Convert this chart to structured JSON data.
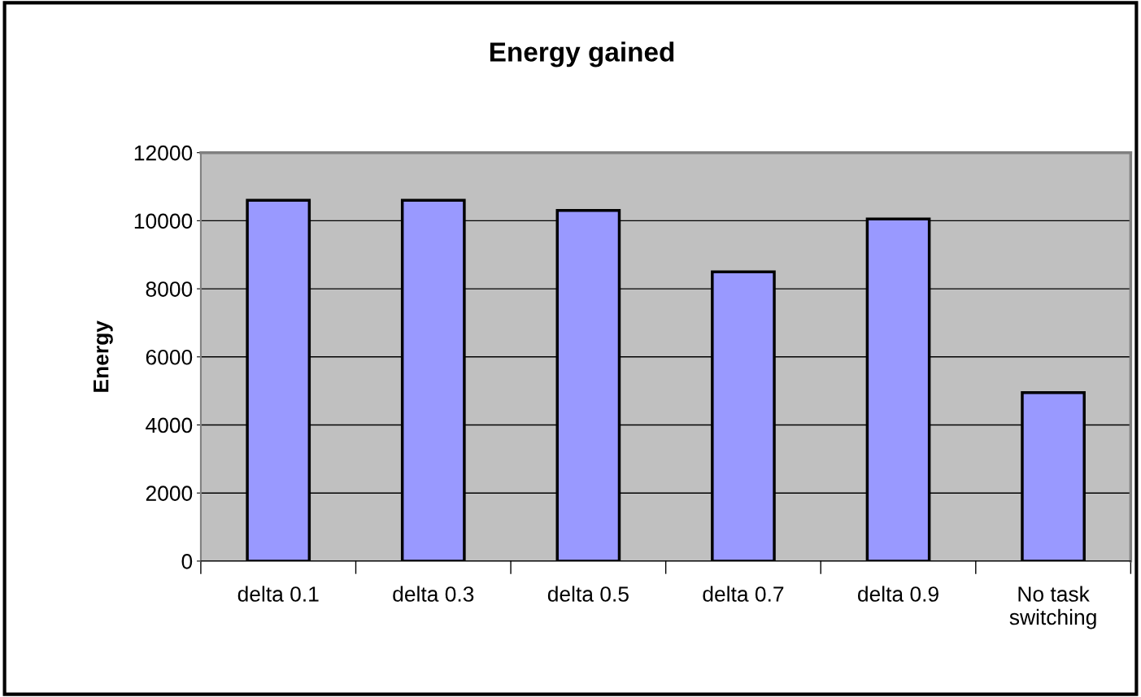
{
  "chart_data": {
    "type": "bar",
    "title": "Energy gained",
    "ylabel": "Energy",
    "categories": [
      "delta 0.1",
      "delta 0.3",
      "delta 0.5",
      "delta 0.7",
      "delta 0.9",
      "No task\nswitching"
    ],
    "values": [
      10600,
      10600,
      10300,
      8500,
      10050,
      4950
    ],
    "color": "#9999ff",
    "ylim": [
      0,
      12000
    ],
    "yticks": [
      0,
      2000,
      4000,
      6000,
      8000,
      10000,
      12000
    ],
    "grid": "y",
    "legend": false
  }
}
